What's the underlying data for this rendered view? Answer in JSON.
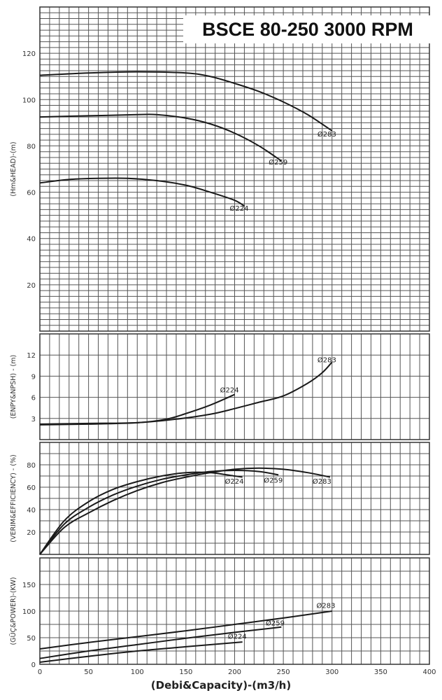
{
  "chart_data": {
    "type": "line",
    "title": "BSCE 80-250 3000 RPM",
    "xlabel": "(Debi&Capacity)-(m3/h)",
    "xlim": [
      0,
      400
    ],
    "xticks": [
      0,
      50,
      100,
      150,
      200,
      250,
      300,
      350,
      400
    ],
    "grid": true,
    "panels": [
      {
        "id": "head",
        "ylabel": "(Hm&HEAD)-(m)",
        "ylim": [
          0,
          140
        ],
        "yticks": [
          20,
          40,
          60,
          80,
          100,
          120
        ],
        "series": [
          {
            "name": "Ø283",
            "label_at": [
              285,
              84
            ],
            "x": [
              0,
              50,
              100,
              150,
              175,
              200,
              225,
              250,
              275,
              300
            ],
            "y": [
              110.5,
              111.5,
              112,
              111.5,
              110,
              107,
              103.5,
              99,
              93.5,
              86.5
            ]
          },
          {
            "name": "Ø259",
            "label_at": [
              235,
              72
            ],
            "x": [
              0,
              50,
              100,
              120,
              150,
              175,
              200,
              225,
              248
            ],
            "y": [
              92.5,
              93,
              93.5,
              93.5,
              92,
              89.5,
              85.5,
              80,
              73.5
            ]
          },
          {
            "name": "Ø224",
            "label_at": [
              195,
              52
            ],
            "x": [
              0,
              30,
              60,
              90,
              120,
              150,
              175,
              200,
              210
            ],
            "y": [
              64,
              65.5,
              66,
              66,
              65,
              63,
              60,
              56.5,
              54
            ]
          }
        ]
      },
      {
        "id": "npsh",
        "ylabel": "(ENPY&NPSH) - (m)",
        "ylim": [
          0,
          15
        ],
        "yticks": [
          3,
          6,
          9,
          12
        ],
        "series": [
          {
            "name": "Ø224",
            "label_at": [
              185,
              6.7
            ],
            "x": [
              0,
              50,
              100,
              130,
              150,
              175,
              200
            ],
            "y": [
              2.2,
              2.3,
              2.4,
              2.9,
              3.7,
              4.9,
              6.4
            ]
          },
          {
            "name": "Ø283",
            "label_at": [
              285,
              11
            ],
            "x": [
              0,
              50,
              100,
              140,
              175,
              200,
              225,
              250,
              275,
              290,
              300
            ],
            "y": [
              2.1,
              2.2,
              2.4,
              2.9,
              3.6,
              4.4,
              5.3,
              6.2,
              8,
              9.5,
              11
            ]
          }
        ]
      },
      {
        "id": "efficiency",
        "ylabel": "(VERIM&EFFICIENCY) - (%)",
        "ylim": [
          0,
          100
        ],
        "yticks": [
          20,
          40,
          60,
          80
        ],
        "series": [
          {
            "name": "Ø224",
            "label_at": [
              190,
              63
            ],
            "x": [
              0,
              25,
              50,
              75,
              100,
              125,
              150,
              175,
              200,
              208
            ],
            "y": [
              0,
              30,
              47,
              58,
              65,
              70,
              73,
              73,
              70,
              69
            ]
          },
          {
            "name": "Ø259",
            "label_at": [
              230,
              64
            ],
            "x": [
              0,
              25,
              50,
              75,
              100,
              125,
              150,
              175,
              200,
              225,
              245
            ],
            "y": [
              0,
              27,
              42,
              53,
              61,
              67,
              71,
              74,
              75,
              74,
              71
            ]
          },
          {
            "name": "Ø283",
            "label_at": [
              280,
              63
            ],
            "x": [
              0,
              25,
              50,
              75,
              100,
              125,
              150,
              175,
              200,
              225,
              250,
              275,
              298
            ],
            "y": [
              0,
              24,
              37,
              48,
              57,
              64,
              69,
              73,
              76,
              77,
              76,
              73,
              69
            ]
          }
        ]
      },
      {
        "id": "power",
        "ylabel": "(GÜÇ&POWER)-(KW)",
        "ylim": [
          0,
          200
        ],
        "yticks": [
          0,
          50,
          100,
          150
        ],
        "series": [
          {
            "name": "Ø283",
            "label_at": [
              284,
              106
            ],
            "x": [
              0,
              50,
              100,
              150,
              200,
              250,
              300
            ],
            "y": [
              29,
              41,
              52,
              63,
              75,
              87,
              100
            ]
          },
          {
            "name": "Ø259",
            "label_at": [
              232,
              73
            ],
            "x": [
              0,
              50,
              100,
              150,
              200,
              248
            ],
            "y": [
              11,
              25,
              37,
              49,
              60,
              70
            ]
          },
          {
            "name": "Ø224",
            "label_at": [
              193,
              48
            ],
            "x": [
              0,
              50,
              100,
              150,
              208
            ],
            "y": [
              4,
              15,
              25,
              33,
              42
            ]
          }
        ]
      }
    ]
  }
}
